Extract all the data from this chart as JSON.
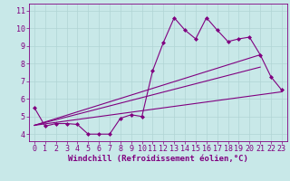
{
  "background_color": "#c8e8e8",
  "plot_bg_color": "#c8e8e8",
  "line_color": "#800080",
  "marker": "D",
  "markersize": 2,
  "linewidth": 0.8,
  "xlabel": "Windchill (Refroidissement éolien,°C)",
  "xlabel_fontsize": 6.5,
  "tick_fontsize": 6,
  "yticks": [
    4,
    5,
    6,
    7,
    8,
    9,
    10,
    11
  ],
  "xticks": [
    0,
    1,
    2,
    3,
    4,
    5,
    6,
    7,
    8,
    9,
    10,
    11,
    12,
    13,
    14,
    15,
    16,
    17,
    18,
    19,
    20,
    21,
    22,
    23
  ],
  "ylim": [
    3.6,
    11.4
  ],
  "xlim": [
    -0.5,
    23.5
  ],
  "grid_color": "#b0d4d4",
  "spine_color": "#800080",
  "main_series": {
    "x": [
      0,
      1,
      2,
      3,
      4,
      5,
      6,
      7,
      8,
      9,
      10,
      11,
      12,
      13,
      14,
      15,
      16,
      17,
      18,
      19,
      20,
      21,
      22,
      23
    ],
    "y": [
      5.5,
      4.45,
      4.6,
      4.6,
      4.55,
      4.0,
      4.0,
      4.0,
      4.9,
      5.1,
      5.0,
      7.6,
      9.2,
      10.6,
      9.9,
      9.4,
      10.6,
      9.9,
      9.25,
      9.4,
      9.5,
      8.5,
      7.25,
      6.5
    ]
  },
  "linear_series": [
    {
      "x": [
        0,
        21
      ],
      "y": [
        4.5,
        8.5
      ]
    },
    {
      "x": [
        0,
        21
      ],
      "y": [
        4.5,
        7.8
      ]
    },
    {
      "x": [
        0,
        23
      ],
      "y": [
        4.5,
        6.4
      ]
    }
  ]
}
